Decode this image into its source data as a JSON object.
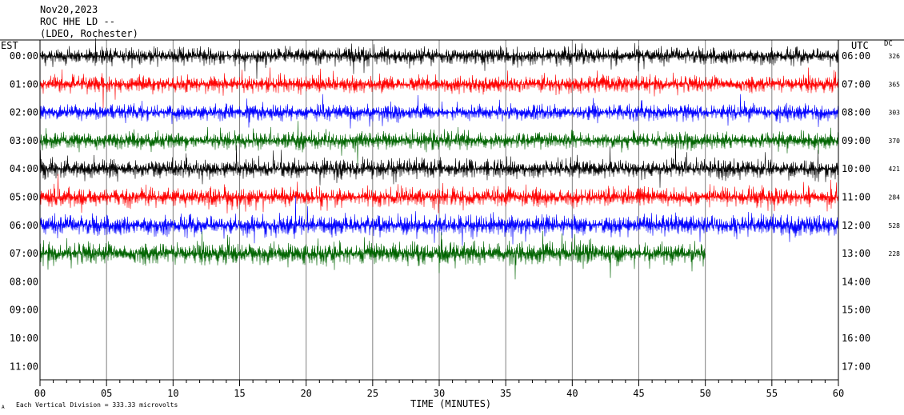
{
  "header": {
    "date": "Nov20,2023",
    "station": "ROC HHE LD --",
    "network": "(LDEO, Rochester)"
  },
  "axis_titles": {
    "left": "EST",
    "right": "UTC",
    "dc": "DC"
  },
  "footer": {
    "xlabel": "TIME (MINUTES)",
    "scale_note": "Each Vertical Division =  333.33 microvolts",
    "corner_mark": "A"
  },
  "colors": {
    "trace_cycle": [
      "#000000",
      "#ff0000",
      "#0000ff",
      "#006400"
    ],
    "grid": "#808080"
  },
  "chart_data": {
    "type": "line",
    "title": "Nov20,2023",
    "xlabel": "TIME (MINUTES)",
    "ylabel": "EST",
    "xlim": [
      0,
      60
    ],
    "x_ticks": [
      "00",
      "05",
      "10",
      "15",
      "20",
      "25",
      "30",
      "35",
      "40",
      "45",
      "50",
      "55",
      "60"
    ],
    "rows_est": [
      "00:00",
      "01:00",
      "02:00",
      "03:00",
      "04:00",
      "05:00",
      "06:00",
      "07:00",
      "08:00",
      "09:00",
      "10:00",
      "11:00"
    ],
    "rows_utc": [
      "06:00",
      "07:00",
      "08:00",
      "09:00",
      "10:00",
      "11:00",
      "12:00",
      "13:00",
      "14:00",
      "15:00",
      "16:00",
      "17:00"
    ],
    "series": [
      {
        "row": "00:00",
        "color": "black",
        "dc": "326",
        "end_minute": 60,
        "amplitude_divisions": 0.9
      },
      {
        "row": "01:00",
        "color": "red",
        "dc": "365",
        "end_minute": 60,
        "amplitude_divisions": 0.9
      },
      {
        "row": "02:00",
        "color": "blue",
        "dc": "303",
        "end_minute": 60,
        "amplitude_divisions": 0.85
      },
      {
        "row": "03:00",
        "color": "green",
        "dc": "370",
        "end_minute": 60,
        "amplitude_divisions": 0.9
      },
      {
        "row": "04:00",
        "color": "black",
        "dc": "421",
        "end_minute": 60,
        "amplitude_divisions": 1.0
      },
      {
        "row": "05:00",
        "color": "red",
        "dc": "284",
        "end_minute": 60,
        "amplitude_divisions": 1.0
      },
      {
        "row": "06:00",
        "color": "blue",
        "dc": "528",
        "end_minute": 60,
        "amplitude_divisions": 1.1
      },
      {
        "row": "07:00",
        "color": "green",
        "dc": "228",
        "end_minute": 50,
        "amplitude_divisions": 1.2
      }
    ]
  }
}
